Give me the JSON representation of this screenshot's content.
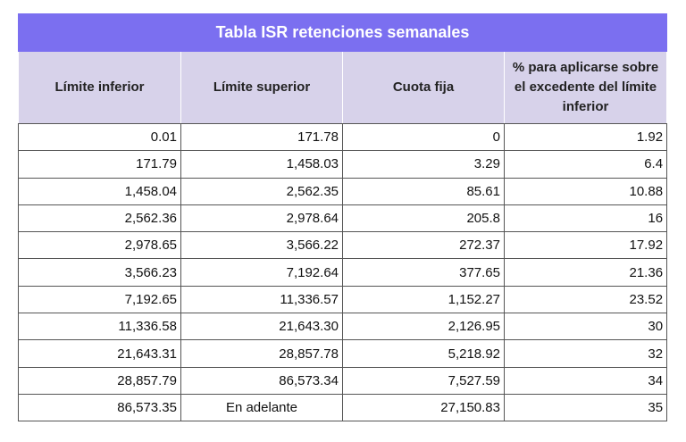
{
  "table": {
    "title": "Tabla ISR retenciones semanales",
    "headers": [
      "Límite inferior",
      "Límite superior",
      "Cuota fija",
      "% para aplicarse sobre el excedente del límite inferior"
    ],
    "rows": [
      [
        "0.01",
        "171.78",
        "0",
        "1.92"
      ],
      [
        "171.79",
        "1,458.03",
        "3.29",
        "6.4"
      ],
      [
        "1,458.04",
        "2,562.35",
        "85.61",
        "10.88"
      ],
      [
        "2,562.36",
        "2,978.64",
        "205.8",
        "16"
      ],
      [
        "2,978.65",
        "3,566.22",
        "272.37",
        "17.92"
      ],
      [
        "3,566.23",
        "7,192.64",
        "377.65",
        "21.36"
      ],
      [
        "7,192.65",
        "11,336.57",
        "1,152.27",
        "23.52"
      ],
      [
        "11,336.58",
        "21,643.30",
        "2,126.95",
        "30"
      ],
      [
        "21,643.31",
        "28,857.78",
        "5,218.92",
        "32"
      ],
      [
        "28,857.79",
        "86,573.34",
        "7,527.59",
        "34"
      ],
      [
        "86,573.35",
        "En adelante",
        "27,150.83",
        "35"
      ]
    ]
  },
  "colors": {
    "title_bg": "#7b6ff0",
    "header_bg": "#d7d2ea",
    "grid": "#555555"
  }
}
